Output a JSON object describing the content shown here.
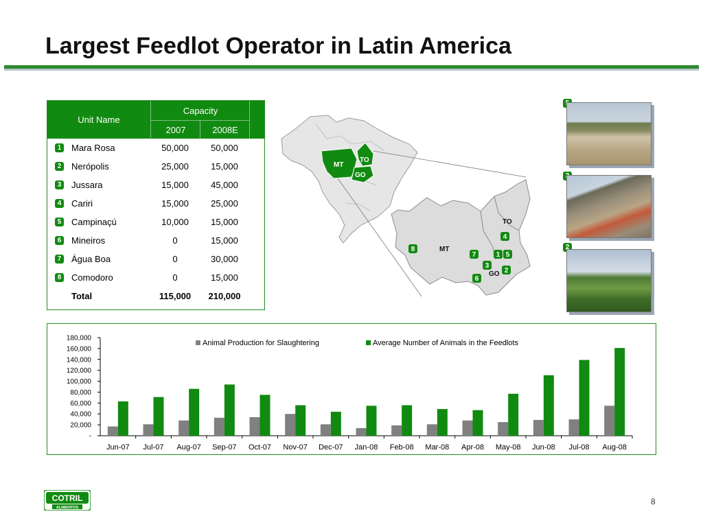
{
  "title": "Largest Feedlot Operator in Latin America",
  "table": {
    "headers": {
      "unit_name": "Unit Name",
      "capacity": "Capacity",
      "year1": "2007",
      "year2": "2008E"
    },
    "rows": [
      {
        "num": "1",
        "name": "Mara Rosa",
        "v2007": "50,000",
        "v2008": "50,000"
      },
      {
        "num": "2",
        "name": "Nerópolis",
        "v2007": "25,000",
        "v2008": "15,000"
      },
      {
        "num": "3",
        "name": "Jussara",
        "v2007": "15,000",
        "v2008": "45,000"
      },
      {
        "num": "4",
        "name": "Cariri",
        "v2007": "15,000",
        "v2008": "25,000"
      },
      {
        "num": "5",
        "name": "Campinaçú",
        "v2007": "10,000",
        "v2008": "15,000"
      },
      {
        "num": "6",
        "name": "Mineiros",
        "v2007": "0",
        "v2008": "15,000"
      },
      {
        "num": "7",
        "name": "Água Boa",
        "v2007": "0",
        "v2008": "30,000"
      },
      {
        "num": "8",
        "name": "Comodoro",
        "v2007": "0",
        "v2008": "15,000"
      }
    ],
    "total": {
      "label": "Total",
      "v2007": "115,000",
      "v2008": "210,000"
    }
  },
  "map": {
    "small_labels": [
      "MT",
      "TO",
      "GO"
    ],
    "large_labels": {
      "mt": "MT",
      "to": "TO",
      "go": "GO"
    },
    "markers": [
      "8",
      "7",
      "1",
      "5",
      "4",
      "3",
      "2",
      "6"
    ]
  },
  "photos": [
    {
      "badge": "5",
      "name": "campinacu-photo"
    },
    {
      "badge": "3",
      "name": "jussara-photo"
    },
    {
      "badge": "2",
      "name": "neropolis-photo"
    }
  ],
  "chart_data": {
    "type": "bar",
    "categories": [
      "Jun-07",
      "Jul-07",
      "Aug-07",
      "Sep-07",
      "Oct-07",
      "Nov-07",
      "Dec-07",
      "Jan-08",
      "Feb-08",
      "Mar-08",
      "Apr-08",
      "May-08",
      "Jun-08",
      "Jul-08",
      "Aug-08"
    ],
    "series": [
      {
        "name": "Animal Production for Slaughtering",
        "color": "#808080",
        "values": [
          17000,
          21000,
          28000,
          33000,
          34000,
          40000,
          21000,
          14000,
          19000,
          21000,
          28000,
          25000,
          29000,
          30000,
          55000
        ]
      },
      {
        "name": "Average Number of Animals in the Feedlots",
        "color": "#118a11",
        "values": [
          63000,
          71000,
          86000,
          94000,
          75000,
          56000,
          44000,
          55000,
          56000,
          49000,
          47000,
          77000,
          111000,
          139000,
          161000
        ]
      }
    ],
    "ylim": [
      0,
      180000
    ],
    "yticks": [
      "-",
      "20,000",
      "40,000",
      "60,000",
      "80,000",
      "100,000",
      "120,000",
      "140,000",
      "160,000",
      "180,000"
    ],
    "legend": "top",
    "grid": false
  },
  "logo": {
    "brand": "COTRIL",
    "sub": "ALIMENTOS"
  },
  "page_number": "8",
  "colors": {
    "accent": "#118a11",
    "rule": "#2e8b2e"
  }
}
